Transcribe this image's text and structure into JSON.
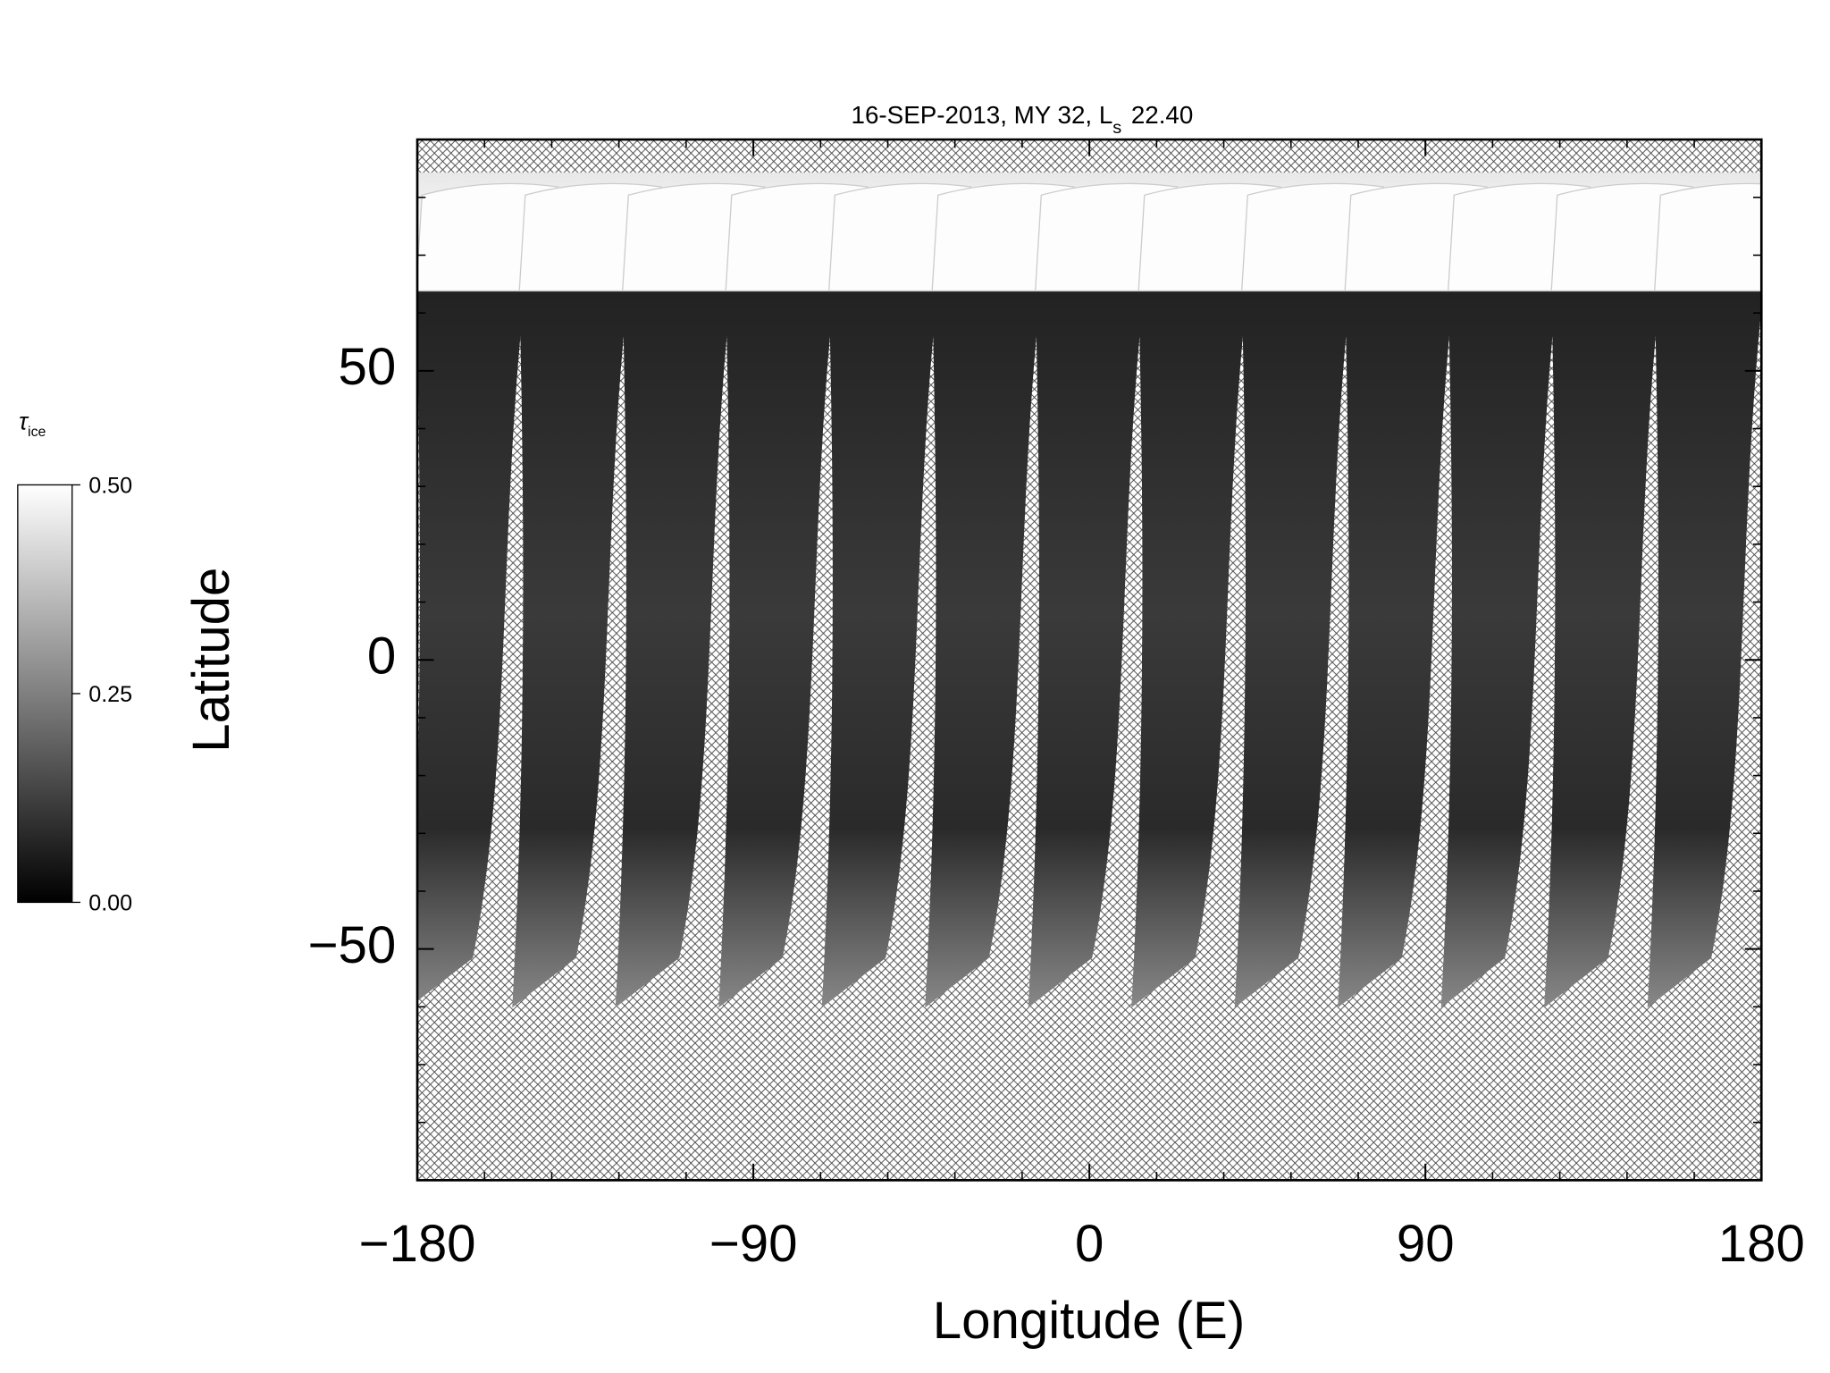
{
  "chart_data": {
    "type": "heatmap",
    "title": "16-SEP-2013, MY 32,  L",
    "title_subscript": "s",
    "title_value": "22.40",
    "x_label": "Longitude (E)",
    "y_label": "Latitude",
    "xlim": [
      -180,
      180
    ],
    "ylim": [
      -90,
      90
    ],
    "xticks": [
      {
        "value": -180,
        "label": "−180"
      },
      {
        "value": -90,
        "label": "−90"
      },
      0,
      90,
      180
    ],
    "yticks": [
      {
        "value": -50,
        "label": "−50"
      },
      0,
      50
    ],
    "xminorticks": [
      -162,
      -144,
      -126,
      -108,
      -72,
      -54,
      -36,
      -18,
      18,
      36,
      54,
      72,
      108,
      126,
      144,
      162
    ],
    "yminorticks": [
      -80,
      -70,
      -60,
      -40,
      -30,
      -20,
      -10,
      10,
      20,
      30,
      40,
      60,
      70,
      80
    ],
    "colorbar": {
      "label": "τ",
      "label_subscript": "ice",
      "clim": [
        0,
        0.5
      ],
      "ticks": [
        {
          "value": 0,
          "label": "0.00"
        },
        {
          "value": 0.25,
          "label": "0.25"
        },
        {
          "value": 0.5,
          "label": "0.50"
        }
      ]
    }
  }
}
